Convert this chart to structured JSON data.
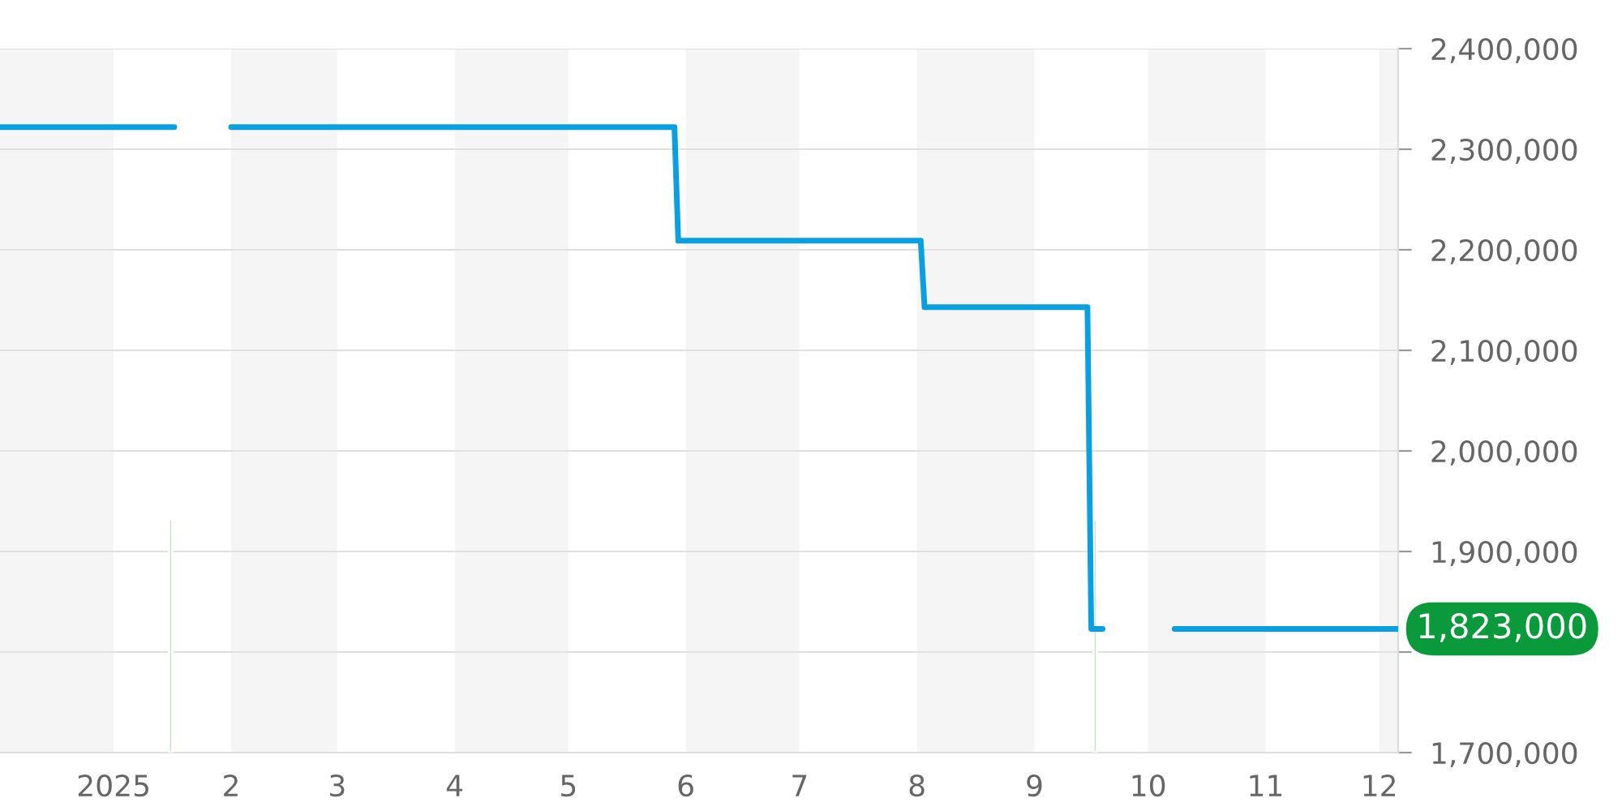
{
  "chart_data": {
    "type": "line",
    "series": [
      {
        "color": "#0aa0e0",
        "x": [
          "2024-12-02",
          "2025-01-17",
          "2025-01-18",
          "2025-02-01",
          "2025-05-29",
          "2025-05-30",
          "2025-08-02",
          "2025-08-03",
          "2025-09-15",
          "2025-09-16",
          "2025-09-19",
          "2025-09-20",
          "2025-10-08",
          "2025-12-06"
        ],
        "values": [
          2322000,
          2322000,
          null,
          2322000,
          2322000,
          2209000,
          2209000,
          2143000,
          2143000,
          1823000,
          1823000,
          null,
          1823000,
          1823000
        ]
      },
      {
        "type": "bar",
        "color": "#a8dca8",
        "x": [
          "2025-01-16",
          "2025-09-17"
        ],
        "base": [
          1700000,
          1700000
        ],
        "values": [
          232000,
          232000
        ]
      }
    ],
    "xlim": [
      "2024-12-02",
      "2025-12-06"
    ],
    "xticks": [
      {
        "value": "2025-01-01",
        "label": "2025"
      },
      {
        "value": "2025-02-01",
        "label": "2"
      },
      {
        "value": "2025-03-01",
        "label": "3"
      },
      {
        "value": "2025-04-01",
        "label": "4"
      },
      {
        "value": "2025-05-01",
        "label": "5"
      },
      {
        "value": "2025-06-01",
        "label": "6"
      },
      {
        "value": "2025-07-01",
        "label": "7"
      },
      {
        "value": "2025-08-01",
        "label": "8"
      },
      {
        "value": "2025-09-01",
        "label": "9"
      },
      {
        "value": "2025-10-01",
        "label": "10"
      },
      {
        "value": "2025-11-01",
        "label": "11"
      },
      {
        "value": "2025-12-01",
        "label": "12"
      }
    ],
    "ylim": [
      1700000,
      2400000
    ],
    "yticks": [
      {
        "value": 1700000,
        "label": "1,700,000"
      },
      {
        "value": 1800000,
        "label": null
      },
      {
        "value": 1900000,
        "label": "1,900,000"
      },
      {
        "value": 2000000,
        "label": "2,000,000"
      },
      {
        "value": 2100000,
        "label": "2,100,000"
      },
      {
        "value": 2200000,
        "label": "2,200,000"
      },
      {
        "value": 2300000,
        "label": "2,300,000"
      },
      {
        "value": 2400000,
        "label": "2,400,000"
      }
    ],
    "bands": [
      {
        "axis": "x",
        "from": "2024-12-02",
        "to": "2025-01-01",
        "color": "#f5f5f5"
      },
      {
        "axis": "x",
        "from": "2025-02-01",
        "to": "2025-03-01",
        "color": "#f5f5f5"
      },
      {
        "axis": "x",
        "from": "2025-04-01",
        "to": "2025-05-01",
        "color": "#f5f5f5"
      },
      {
        "axis": "x",
        "from": "2025-06-01",
        "to": "2025-07-01",
        "color": "#f5f5f5"
      },
      {
        "axis": "x",
        "from": "2025-08-01",
        "to": "2025-09-01",
        "color": "#f5f5f5"
      },
      {
        "axis": "x",
        "from": "2025-10-01",
        "to": "2025-11-01",
        "color": "#f5f5f5"
      },
      {
        "axis": "x",
        "from": "2025-12-01",
        "to": "2025-12-06",
        "color": "#f5f5f5"
      }
    ],
    "annotations": [
      {
        "text": "1,823,000",
        "x": "2025-12-06",
        "y": 1823000
      }
    ],
    "grid": "y",
    "legend": false
  }
}
